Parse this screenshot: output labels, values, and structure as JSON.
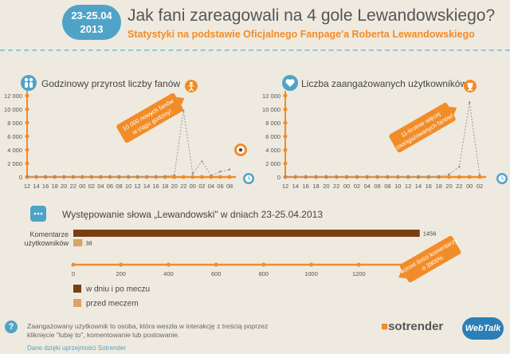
{
  "header": {
    "date_range": "23-25.04",
    "year": "2013",
    "title": "Jak fani zareagowali na 4 gole Lewandowskiego?",
    "subtitle": "Statystyki na podstawie Oficjalnego Fanpage'a Roberta Lewandowskiego"
  },
  "colors": {
    "accent": "#f28c28",
    "blue": "#4fa3c7",
    "dark_bar": "#7a3e12",
    "light_bar": "#d9a36a",
    "background": "#efeae0"
  },
  "icons": {
    "fans": "people-icon",
    "engaged": "heart-icon",
    "mentions": "speech-bubble-icon",
    "runner": "runner-icon",
    "ball": "football-icon",
    "trophy": "trophy-icon",
    "clock": "clock-icon",
    "info": "question-icon"
  },
  "chart_data": [
    {
      "type": "line",
      "title": "Godzinowy przyrost liczby fanów",
      "x": [
        "12",
        "14",
        "16",
        "18",
        "20",
        "22",
        "00",
        "02",
        "04",
        "06",
        "08",
        "10",
        "12",
        "14",
        "16",
        "18",
        "20",
        "22",
        "00",
        "02",
        "04",
        "06",
        "08"
      ],
      "series": [
        {
          "values": [
            80,
            70,
            60,
            80,
            90,
            70,
            80,
            60,
            50,
            60,
            70,
            60,
            80,
            70,
            60,
            90,
            300,
            9800,
            500,
            2300,
            200,
            800,
            1100
          ]
        }
      ],
      "ylim": [
        0,
        12000
      ],
      "yticks": [
        "0",
        "2 000",
        "4 000",
        "6 000",
        "8 000",
        "10 000",
        "12 000"
      ],
      "annotation": "10 000 nowych fanów w ciągu godziny!"
    },
    {
      "type": "line",
      "title": "Liczba zaangażowanych użytkowników",
      "x": [
        "12",
        "14",
        "16",
        "18",
        "20",
        "22",
        "00",
        "02",
        "04",
        "06",
        "08",
        "10",
        "12",
        "14",
        "16",
        "18",
        "20",
        "22",
        "00",
        "02"
      ],
      "series": [
        {
          "values": [
            60,
            60,
            50,
            40,
            50,
            60,
            50,
            40,
            30,
            40,
            50,
            60,
            50,
            40,
            50,
            60,
            400,
            1500,
            11000,
            300
          ]
        }
      ],
      "ylim": [
        0,
        12000
      ],
      "yticks": [
        "0",
        "2 000",
        "4 000",
        "6 000",
        "8 000",
        "10 000",
        "12 000"
      ],
      "annotation": "11-krotnie więcej zaangażowanych fanów!"
    },
    {
      "type": "bar",
      "title": "Występowanie słowa „Lewandowski\" w dniach 23-25.04.2013",
      "categories": [
        "Komentarze użytkowników"
      ],
      "series": [
        {
          "name": "w dniu i po meczu",
          "values": [
            1456
          ]
        },
        {
          "name": "przed meczem",
          "values": [
            38
          ]
        }
      ],
      "xlim": [
        0,
        1400
      ],
      "xticks": [
        "0",
        "200",
        "400",
        "600",
        "800",
        "1000",
        "1200",
        "1400"
      ],
      "category_label_line1": "Komentarze",
      "category_label_line2": "użytkowników",
      "annotation": "wzrost ilości komentarzy o 3800%"
    }
  ],
  "footer": {
    "definition": "Zaangażowany użytkownik to osoba, która weszła w interakcję z treścią poprzez kliknięcie \"lubię to\", komentowanie lub postowanie.",
    "credit": "Dane dzięki uprzejmości Sotrender",
    "sotrender_mark": "■",
    "sotrender_text": "sotrender",
    "webtalk_text": "WebTalk"
  }
}
